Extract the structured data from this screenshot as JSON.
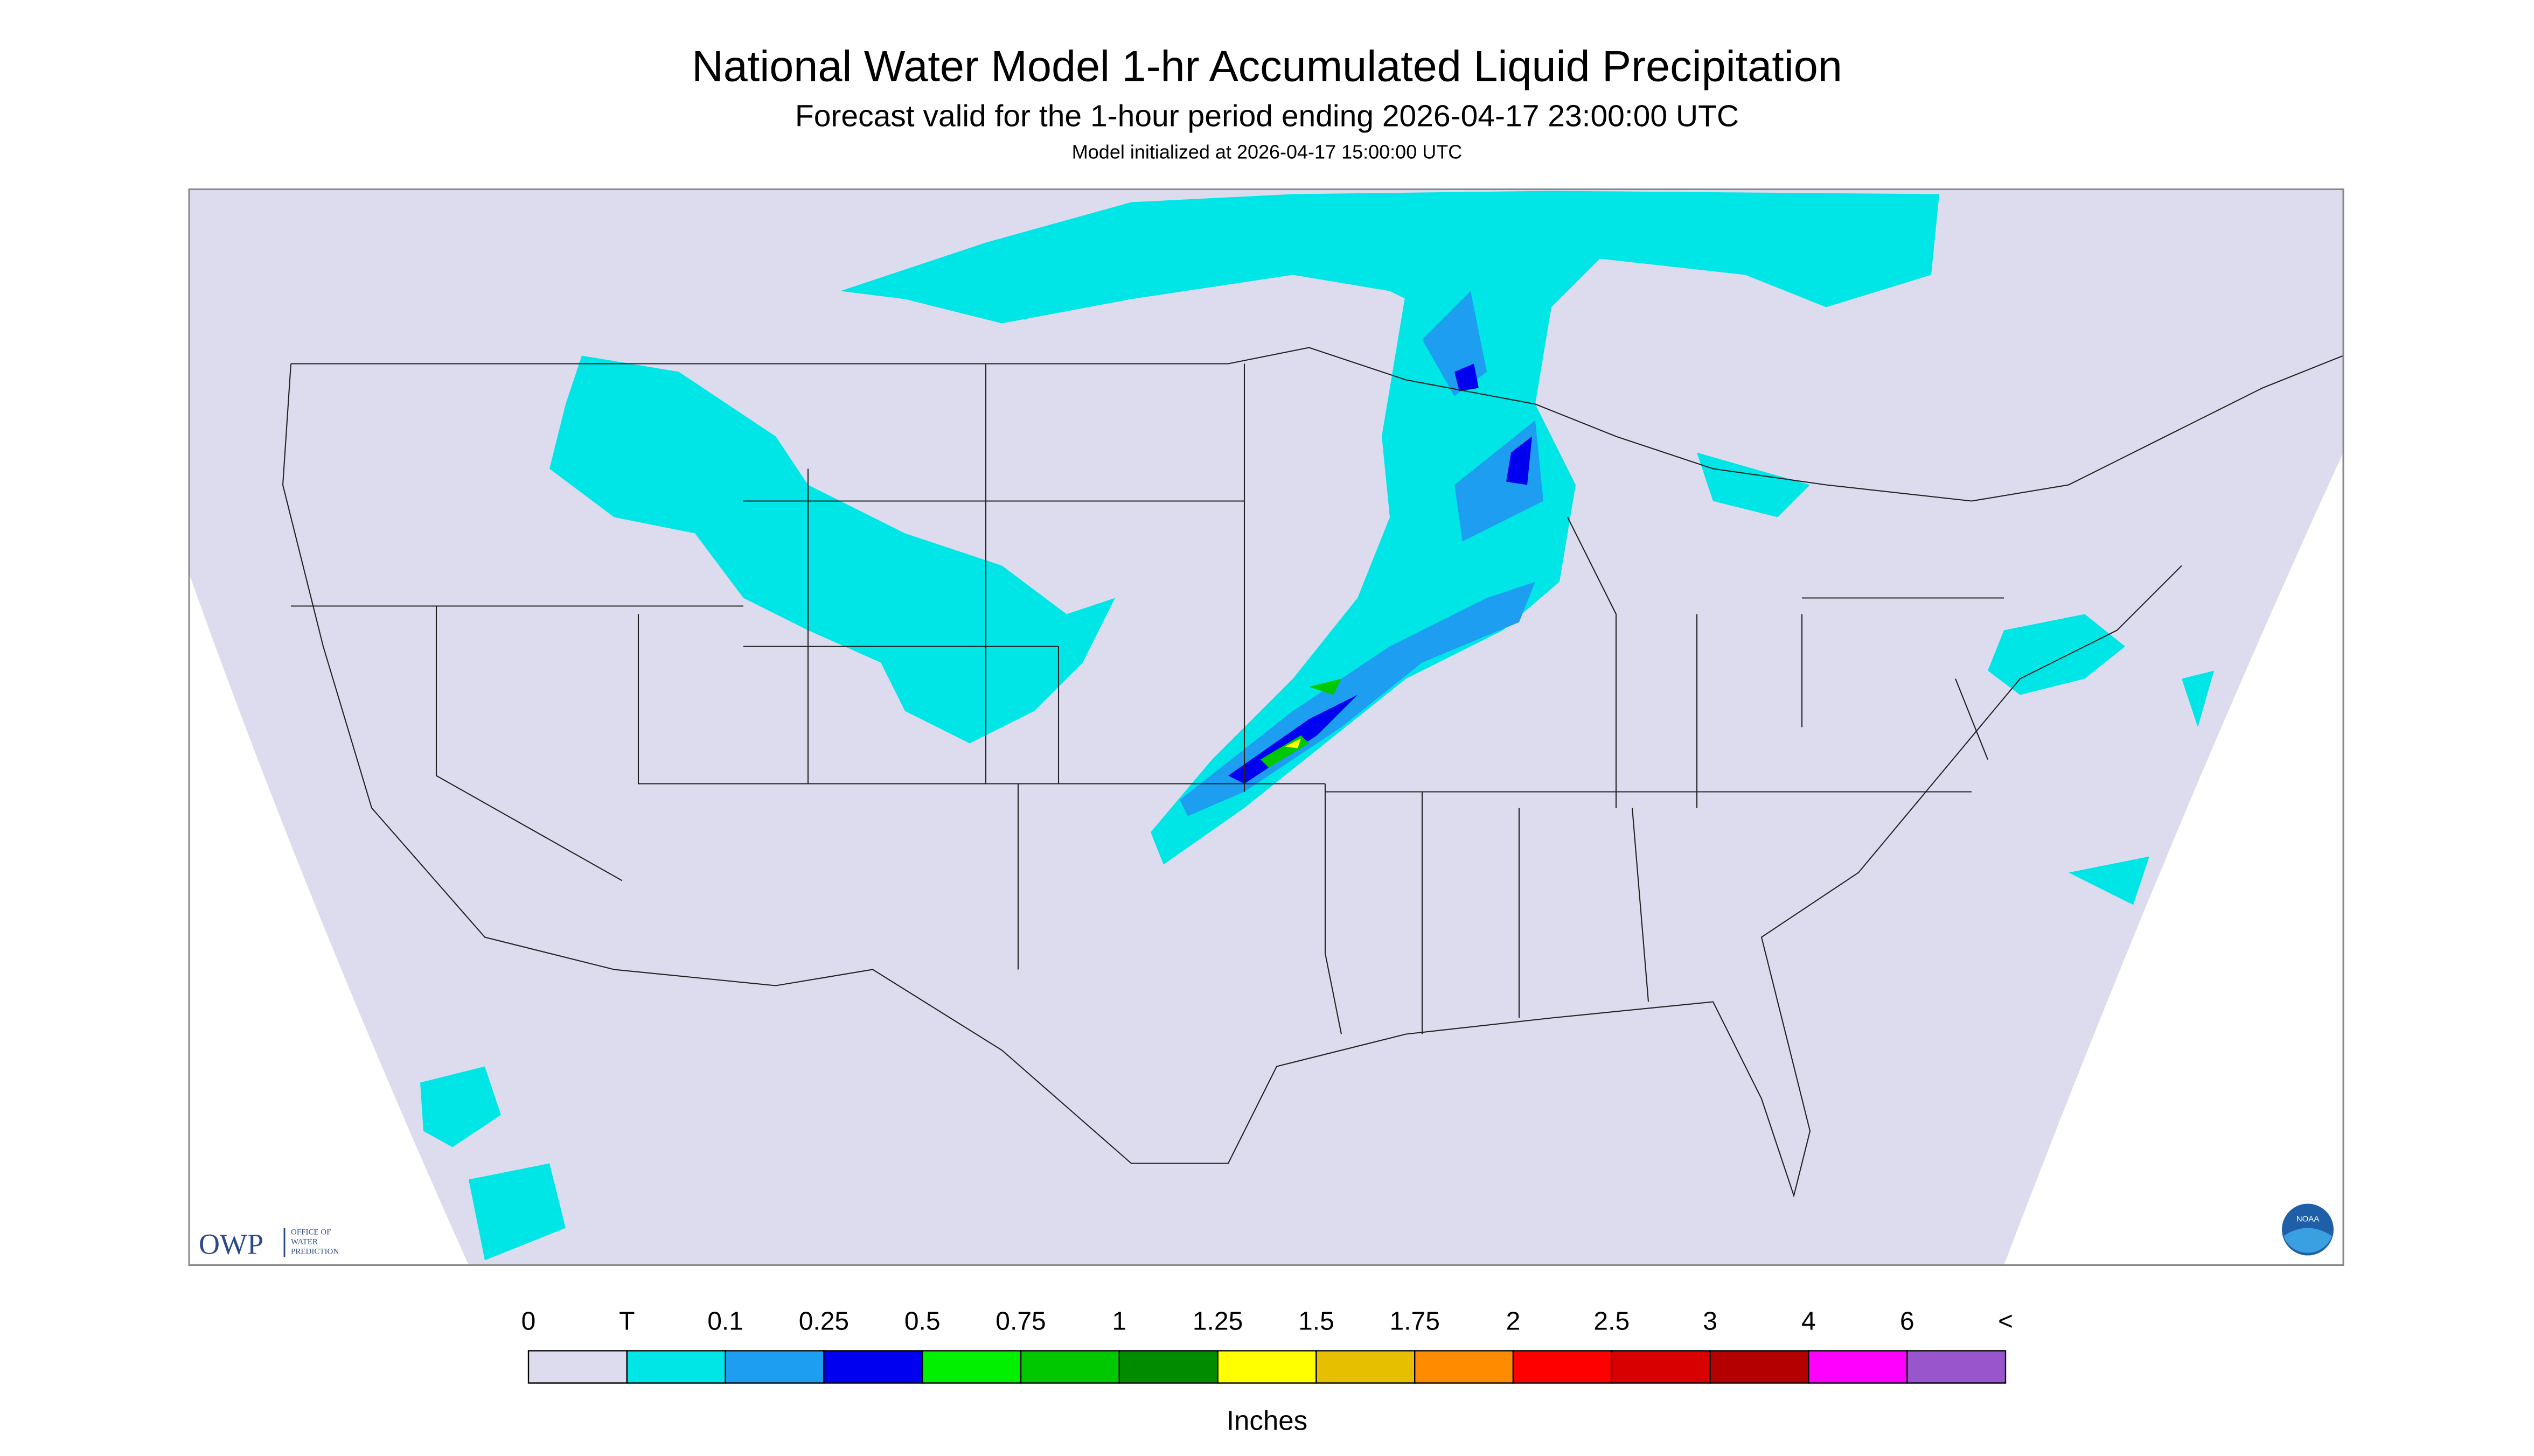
{
  "header": {
    "title": "National Water Model 1-hr Accumulated Liquid Precipitation",
    "subtitle": "Forecast valid for the 1-hour period ending 2026-04-17 23:00:00 UTC",
    "init": "Model initialized at 2026-04-17 15:00:00 UTC"
  },
  "logos": {
    "owp": "OWP",
    "owp_text": [
      "OFFICE OF",
      "WATER",
      "PREDICTION"
    ],
    "noaa": "NOAA"
  },
  "legend": {
    "labels": [
      "0",
      "T",
      "0.1",
      "0.25",
      "0.5",
      "0.75",
      "1",
      "1.25",
      "1.5",
      "1.75",
      "2",
      "2.5",
      "3",
      "4",
      "6",
      "<"
    ],
    "colors": [
      "#dcdcee",
      "#00e6e6",
      "#1e9ef0",
      "#0000f0",
      "#00f000",
      "#00c800",
      "#008c00",
      "#ffff00",
      "#e6c000",
      "#ff8c00",
      "#ff0000",
      "#d80000",
      "#b40000",
      "#ff00ff",
      "#9955cc"
    ],
    "unit": "Inches"
  }
}
